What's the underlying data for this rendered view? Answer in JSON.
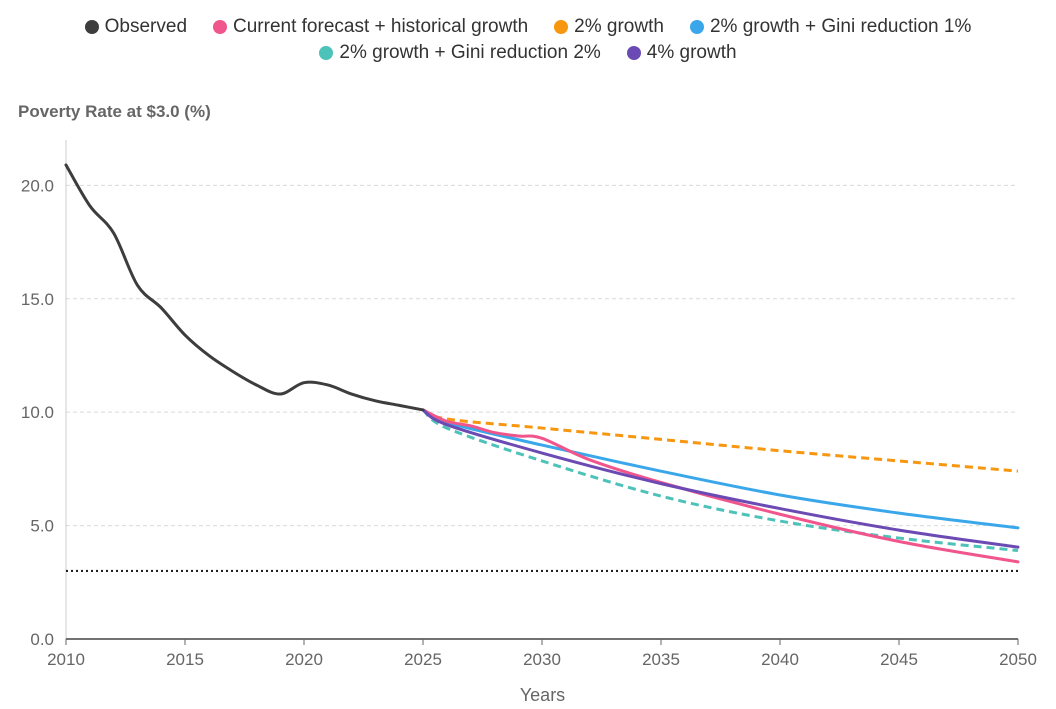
{
  "chart_data": {
    "type": "line",
    "ylabel": "Poverty Rate at $3.0 (%)",
    "xlabel": "Years",
    "xlim": [
      2010,
      2050
    ],
    "ylim": [
      0,
      22
    ],
    "x_ticks": [
      "2010",
      "2015",
      "2020",
      "2025",
      "2030",
      "2035",
      "2040",
      "2045",
      "2050"
    ],
    "y_ticks": [
      "0.0",
      "5.0",
      "10.0",
      "15.0",
      "20.0"
    ],
    "grid": "horizontal dashed",
    "legend_position": "top-center",
    "reference_line": {
      "y": 3.0,
      "style": "dotted",
      "color": "#222222"
    },
    "series": [
      {
        "name": "Observed",
        "color": "#3d3d3d",
        "dash": false,
        "x": [
          2010,
          2011,
          2012,
          2013,
          2014,
          2015,
          2016,
          2017,
          2018,
          2019,
          2020,
          2021,
          2022,
          2023,
          2024,
          2025
        ],
        "y": [
          20.9,
          19.1,
          17.9,
          15.6,
          14.6,
          13.4,
          12.5,
          11.8,
          11.2,
          10.8,
          11.3,
          11.2,
          10.8,
          10.5,
          10.3,
          10.1
        ]
      },
      {
        "name": "Current forecast + historical growth",
        "color": "#f0558c",
        "dash": false,
        "x": [
          2025,
          2026,
          2027,
          2028,
          2029,
          2030,
          2032,
          2035,
          2040,
          2045,
          2050
        ],
        "y": [
          10.1,
          9.6,
          9.4,
          9.1,
          8.95,
          8.85,
          7.9,
          6.9,
          5.5,
          4.3,
          3.4
        ]
      },
      {
        "name": "2% growth",
        "color": "#f7960f",
        "dash": true,
        "x": [
          2025,
          2026,
          2030,
          2035,
          2040,
          2045,
          2050
        ],
        "y": [
          10.1,
          9.7,
          9.3,
          8.8,
          8.3,
          7.85,
          7.4
        ]
      },
      {
        "name": "2% growth + Gini reduction 1%",
        "color": "#3aa7ea",
        "dash": false,
        "x": [
          2025,
          2026,
          2030,
          2035,
          2040,
          2045,
          2050
        ],
        "y": [
          10.1,
          9.55,
          8.55,
          7.4,
          6.35,
          5.55,
          4.9
        ]
      },
      {
        "name": "2% growth + Gini reduction 2%",
        "color": "#4dc2b9",
        "dash": true,
        "x": [
          2025,
          2026,
          2030,
          2035,
          2040,
          2045,
          2050
        ],
        "y": [
          10.1,
          9.3,
          7.85,
          6.3,
          5.2,
          4.45,
          3.9
        ]
      },
      {
        "name": "4% growth",
        "color": "#6c4ab4",
        "dash": false,
        "x": [
          2025,
          2026,
          2030,
          2035,
          2040,
          2045,
          2050
        ],
        "y": [
          10.1,
          9.45,
          8.2,
          6.85,
          5.75,
          4.8,
          4.05
        ]
      }
    ]
  }
}
